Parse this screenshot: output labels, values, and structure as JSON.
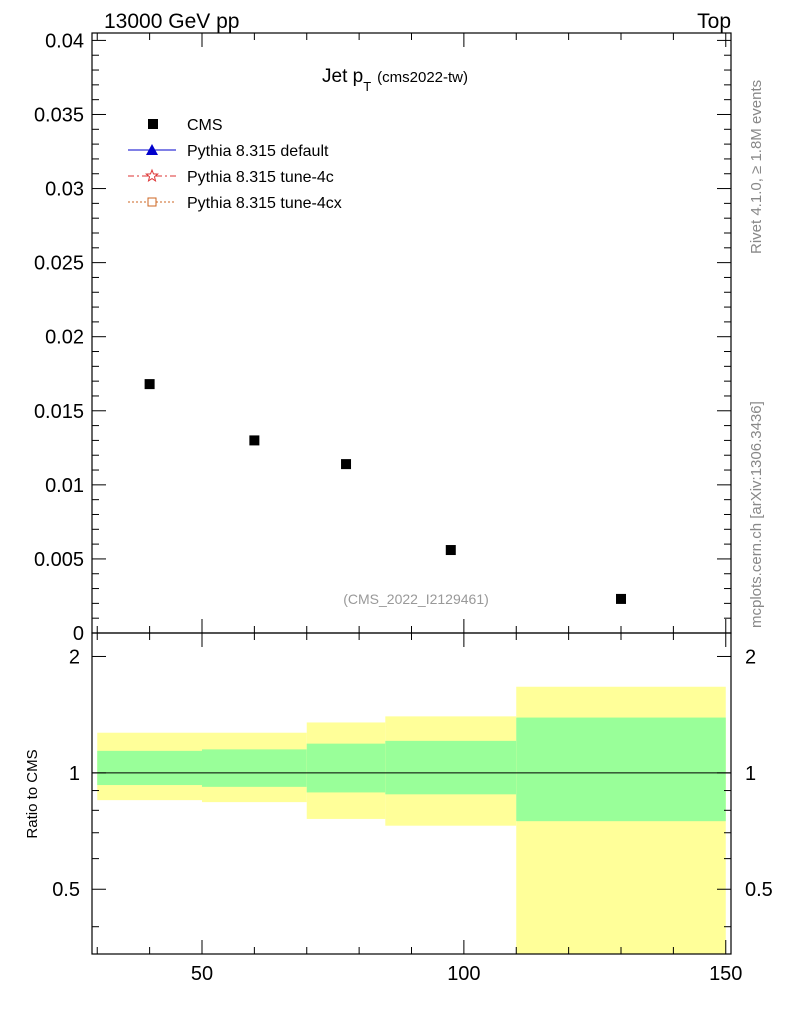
{
  "header": {
    "left": "13000 GeV pp",
    "right": "Top"
  },
  "side_labels": {
    "upper": "Rivet 4.1.0, ≥ 1.8M events",
    "lower": "mcplots.cern.ch [arXiv:1306.3436]"
  },
  "chart_data": [
    {
      "type": "scatter",
      "title_main": "Jet p",
      "title_sub": "T",
      "title_extra": "(cms2022-tw)",
      "analysis_tag": "(CMS_2022_I2129461)",
      "xlim": [
        29,
        151
      ],
      "ylim": [
        0,
        0.0405
      ],
      "yticks": [
        0,
        0.005,
        0.01,
        0.015,
        0.02,
        0.025,
        0.03,
        0.035,
        0.04
      ],
      "yticklabels": [
        "0",
        "0.005",
        "0.01",
        "0.015",
        "0.02",
        "0.025",
        "0.03",
        "0.035",
        "0.04"
      ],
      "legend": [
        {
          "label": "CMS",
          "marker": "square",
          "color": "#000000"
        },
        {
          "label": "Pythia 8.315 default",
          "marker": "triangle",
          "color": "#0000cc"
        },
        {
          "label": "Pythia 8.315 tune-4c",
          "marker": "star",
          "color": "#dd3333"
        },
        {
          "label": "Pythia 8.315 tune-4cx",
          "marker": "open-square",
          "color": "#cc6622"
        }
      ],
      "series": [
        {
          "name": "CMS",
          "x": [
            40,
            60,
            77.5,
            97.5,
            130
          ],
          "y": [
            0.0168,
            0.013,
            0.0114,
            0.0056,
            0.0023
          ]
        }
      ]
    },
    {
      "type": "area",
      "ylabel": "Ratio to CMS",
      "xlim": [
        29,
        151
      ],
      "ylim": [
        0.34,
        2.3
      ],
      "xticks": [
        50,
        100,
        150
      ],
      "xticklabels": [
        "50",
        "100",
        "150"
      ],
      "yticks": [
        0.5,
        1,
        2
      ],
      "yticklabels": [
        "0.5",
        "1",
        "2"
      ],
      "reference_line": 1,
      "bins": [
        {
          "x0": 30,
          "x1": 50,
          "inner": [
            0.93,
            1.14
          ],
          "outer": [
            0.85,
            1.27
          ]
        },
        {
          "x0": 50,
          "x1": 70,
          "inner": [
            0.92,
            1.15
          ],
          "outer": [
            0.84,
            1.27
          ]
        },
        {
          "x0": 70,
          "x1": 85,
          "inner": [
            0.89,
            1.19
          ],
          "outer": [
            0.76,
            1.35
          ]
        },
        {
          "x0": 85,
          "x1": 110,
          "inner": [
            0.88,
            1.21
          ],
          "outer": [
            0.73,
            1.4
          ]
        },
        {
          "x0": 110,
          "x1": 150,
          "inner": [
            0.75,
            1.39
          ],
          "outer": [
            0.34,
            1.67
          ]
        }
      ],
      "band_colors": {
        "inner": "#99ff99",
        "outer": "#ffff99"
      }
    }
  ]
}
